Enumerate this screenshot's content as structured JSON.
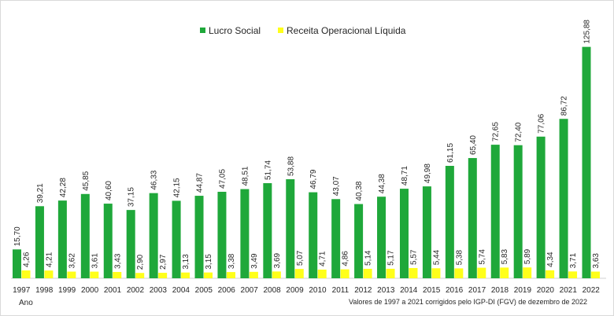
{
  "chart_data": {
    "type": "bar",
    "title": "",
    "xlabel": "Ano",
    "ylabel": "",
    "grid": false,
    "legend": "top-center",
    "ylim": [
      0,
      130
    ],
    "categories": [
      "1997",
      "1998",
      "1999",
      "2000",
      "2001",
      "2002",
      "2003",
      "2004",
      "2005",
      "2006",
      "2007",
      "2008",
      "2009",
      "2010",
      "2011",
      "2012",
      "2013",
      "2014",
      "2015",
      "2016",
      "2017",
      "2018",
      "2019",
      "2020",
      "2021",
      "2022"
    ],
    "series": [
      {
        "name": "Lucro Social",
        "color": "#1fa83a",
        "values": [
          15.7,
          39.21,
          42.28,
          45.85,
          40.6,
          37.15,
          46.33,
          42.15,
          44.87,
          47.05,
          48.51,
          51.74,
          53.88,
          46.79,
          43.07,
          40.38,
          44.38,
          48.71,
          49.98,
          61.15,
          65.4,
          72.65,
          72.4,
          77.06,
          86.72,
          125.88
        ],
        "labels": [
          "15,70",
          "39,21",
          "42,28",
          "45,85",
          "40,60",
          "37,15",
          "46,33",
          "42,15",
          "44,87",
          "47,05",
          "48,51",
          "51,74",
          "53,88",
          "46,79",
          "43,07",
          "40,38",
          "44,38",
          "48,71",
          "49,98",
          "61,15",
          "65,40",
          "72,65",
          "72,40",
          "77,06",
          "86,72",
          "125,88"
        ]
      },
      {
        "name": "Receita Operacional Líquida",
        "color": "#ffff1a",
        "values": [
          4.26,
          4.21,
          3.62,
          3.61,
          3.43,
          2.9,
          2.97,
          3.13,
          3.15,
          3.38,
          3.49,
          3.69,
          5.07,
          4.71,
          4.86,
          5.14,
          5.17,
          5.57,
          5.44,
          5.38,
          5.74,
          5.83,
          5.89,
          4.34,
          3.71,
          3.63
        ],
        "labels": [
          "4,26",
          "4,21",
          "3,62",
          "3,61",
          "3,43",
          "2,90",
          "2,97",
          "3,13",
          "3,15",
          "3,38",
          "3,49",
          "3,69",
          "5,07",
          "4,71",
          "4,86",
          "5,14",
          "5,17",
          "5,57",
          "5,44",
          "5,38",
          "5,74",
          "5,83",
          "5,89",
          "4,34",
          "3,71",
          "3,63"
        ]
      }
    ],
    "annotations": {
      "note": "Valores de 1997 a 2021 corrigidos pelo IGP-DI (FGV) de dezembro de 2022"
    }
  }
}
